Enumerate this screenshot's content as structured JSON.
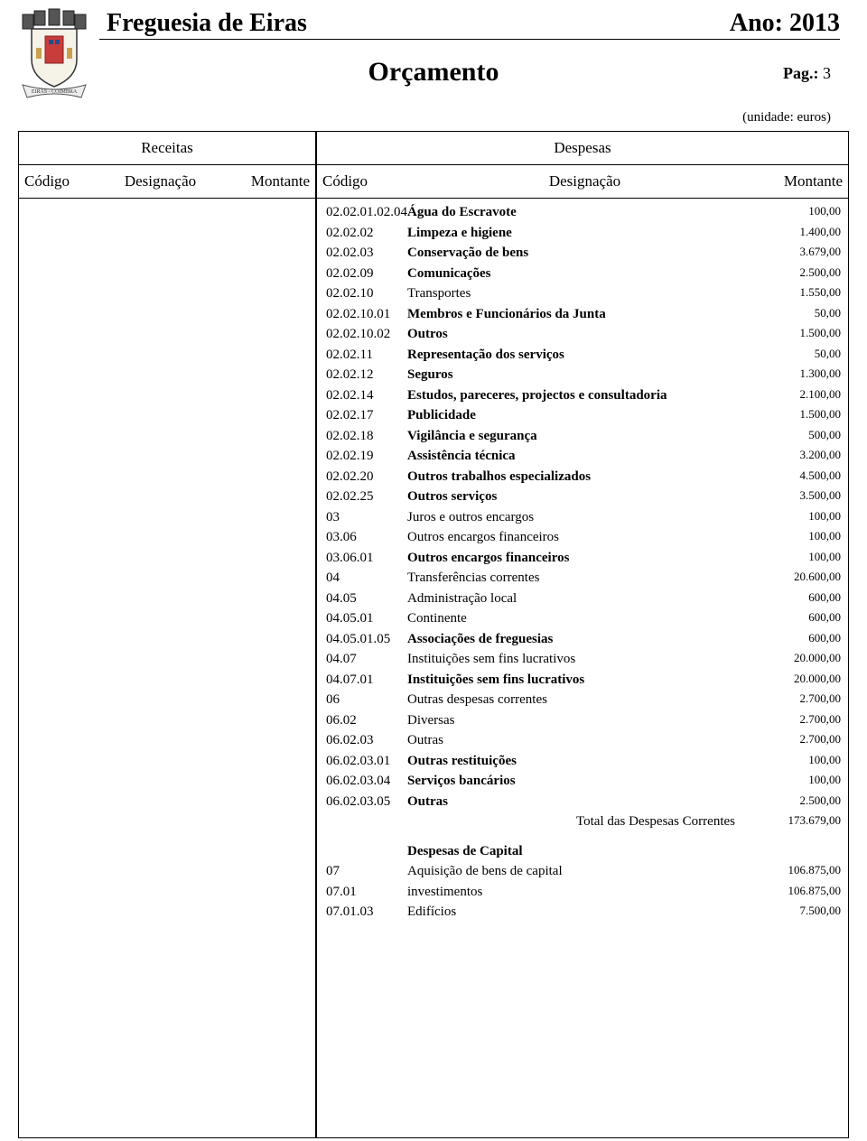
{
  "header": {
    "freguesia": "Freguesia de Eiras",
    "ano_label": "Ano: 2013",
    "doc_title": "Orçamento",
    "pag_label": "Pag.:",
    "pag_num": "3",
    "unit_label": "(unidade: euros)"
  },
  "panels": {
    "receitas_title": "Receitas",
    "despesas_title": "Despesas"
  },
  "columns": {
    "codigo": "Código",
    "designacao": "Designação",
    "montante": "Montante"
  },
  "rows": [
    {
      "code": "02.02.01.02.04",
      "desc": "Água do Escravote",
      "amt": "100,00",
      "bold": true
    },
    {
      "code": "02.02.02",
      "desc": "Limpeza e higiene",
      "amt": "1.400,00",
      "bold": true
    },
    {
      "code": "02.02.03",
      "desc": "Conservação de bens",
      "amt": "3.679,00",
      "bold": true
    },
    {
      "code": "02.02.09",
      "desc": "Comunicações",
      "amt": "2.500,00",
      "bold": true
    },
    {
      "code": "02.02.10",
      "desc": "Transportes",
      "amt": "1.550,00",
      "bold": false
    },
    {
      "code": "02.02.10.01",
      "desc": "Membros e Funcionários da Junta",
      "amt": "50,00",
      "bold": true
    },
    {
      "code": "02.02.10.02",
      "desc": "Outros",
      "amt": "1.500,00",
      "bold": true
    },
    {
      "code": "02.02.11",
      "desc": "Representação dos serviços",
      "amt": "50,00",
      "bold": true
    },
    {
      "code": "02.02.12",
      "desc": "Seguros",
      "amt": "1.300,00",
      "bold": true
    },
    {
      "code": "02.02.14",
      "desc": "Estudos, pareceres, projectos e consultadoria",
      "amt": "2.100,00",
      "bold": true
    },
    {
      "code": "02.02.17",
      "desc": "Publicidade",
      "amt": "1.500,00",
      "bold": true
    },
    {
      "code": "02.02.18",
      "desc": "Vigilância e segurança",
      "amt": "500,00",
      "bold": true
    },
    {
      "code": "02.02.19",
      "desc": "Assistência técnica",
      "amt": "3.200,00",
      "bold": true
    },
    {
      "code": "02.02.20",
      "desc": "Outros trabalhos especializados",
      "amt": "4.500,00",
      "bold": true
    },
    {
      "code": "02.02.25",
      "desc": "Outros serviços",
      "amt": "3.500,00",
      "bold": true
    },
    {
      "code": "03",
      "desc": "Juros e outros encargos",
      "amt": "100,00",
      "bold": false
    },
    {
      "code": "03.06",
      "desc": "Outros encargos financeiros",
      "amt": "100,00",
      "bold": false
    },
    {
      "code": "03.06.01",
      "desc": "Outros encargos financeiros",
      "amt": "100,00",
      "bold": true
    },
    {
      "code": "04",
      "desc": "Transferências correntes",
      "amt": "20.600,00",
      "bold": false
    },
    {
      "code": "04.05",
      "desc": "Administração local",
      "amt": "600,00",
      "bold": false
    },
    {
      "code": "04.05.01",
      "desc": "Continente",
      "amt": "600,00",
      "bold": false
    },
    {
      "code": "04.05.01.05",
      "desc": "Associações de freguesias",
      "amt": "600,00",
      "bold": true
    },
    {
      "code": "04.07",
      "desc": "Instituições sem fins lucrativos",
      "amt": "20.000,00",
      "bold": false
    },
    {
      "code": "04.07.01",
      "desc": "Instituições sem fins lucrativos",
      "amt": "20.000,00",
      "bold": true
    },
    {
      "code": "06",
      "desc": "Outras despesas correntes",
      "amt": "2.700,00",
      "bold": false
    },
    {
      "code": "06.02",
      "desc": "Diversas",
      "amt": "2.700,00",
      "bold": false
    },
    {
      "code": "06.02.03",
      "desc": "Outras",
      "amt": "2.700,00",
      "bold": false
    },
    {
      "code": "06.02.03.01",
      "desc": "Outras restituições",
      "amt": "100,00",
      "bold": true
    },
    {
      "code": "06.02.03.04",
      "desc": "Serviços bancários",
      "amt": "100,00",
      "bold": true
    },
    {
      "code": "06.02.03.05",
      "desc": "Outras",
      "amt": "2.500,00",
      "bold": true
    }
  ],
  "total_correntes": {
    "label": "Total das Despesas Correntes",
    "amt": "173.679,00"
  },
  "section_capital": {
    "label": "Despesas de Capital"
  },
  "capital_rows": [
    {
      "code": "07",
      "desc": "Aquisição de bens de capital",
      "amt": "106.875,00",
      "bold": false
    },
    {
      "code": "07.01",
      "desc": "investimentos",
      "amt": "106.875,00",
      "bold": false
    },
    {
      "code": "07.01.03",
      "desc": "Edifícios",
      "amt": "7.500,00",
      "bold": false
    }
  ]
}
